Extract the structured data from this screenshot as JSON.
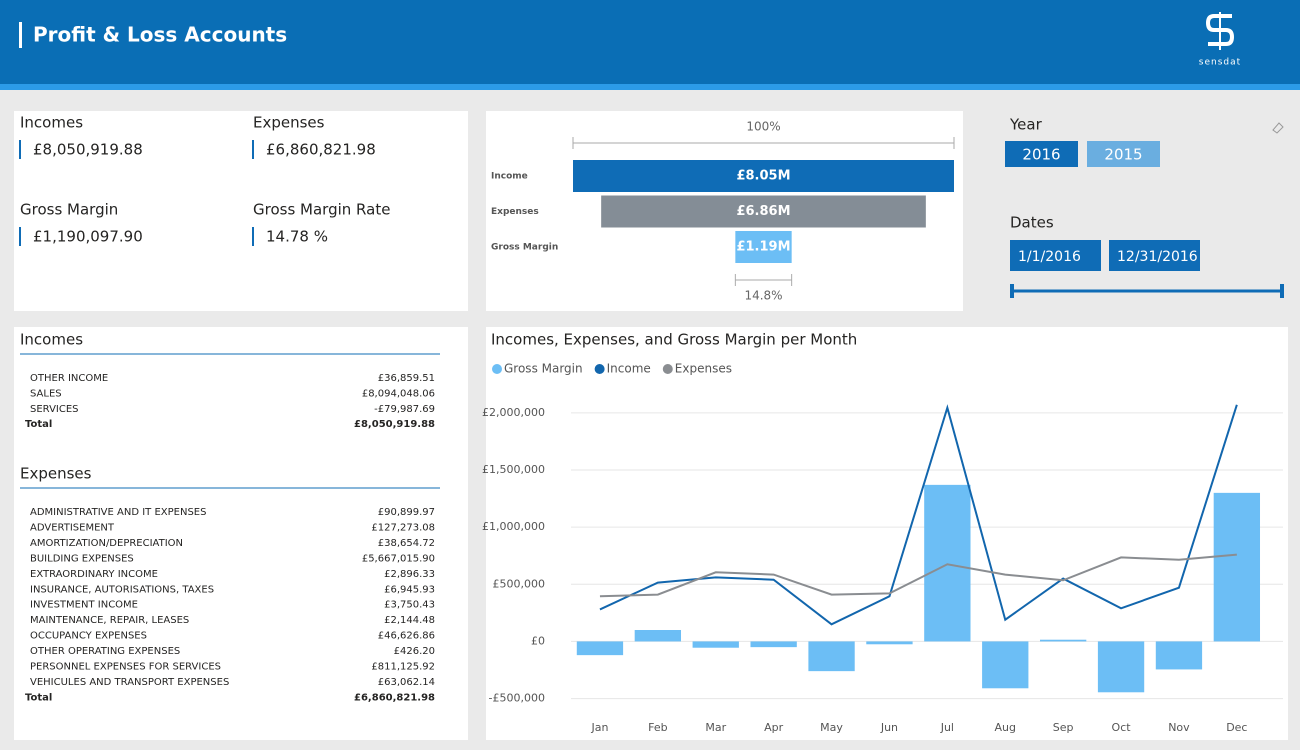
{
  "header": {
    "title": "Profit & Loss Accounts",
    "logo_text": "sensdat"
  },
  "kpis": [
    {
      "label": "Incomes",
      "value": "£8,050,919.88"
    },
    {
      "label": "Expenses",
      "value": "£6,860,821.98"
    },
    {
      "label": "Gross Margin",
      "value": "£1,190,097.90"
    },
    {
      "label": "Gross Margin Rate",
      "value": "14.78 %"
    }
  ],
  "slicers": {
    "year": {
      "label": "Year",
      "options": [
        {
          "label": "2016",
          "selected": true
        },
        {
          "label": "2015",
          "selected": false
        }
      ]
    },
    "dates": {
      "label": "Dates",
      "start": "1/1/2016",
      "end": "12/31/2016"
    }
  },
  "tables": [
    {
      "title": "Incomes",
      "rows": [
        [
          "OTHER INCOME",
          "£36,859.51"
        ],
        [
          "SALES",
          "£8,094,048.06"
        ],
        [
          "SERVICES",
          "-£79,987.69"
        ]
      ],
      "total": [
        "Total",
        "£8,050,919.88"
      ]
    },
    {
      "title": "Expenses",
      "rows": [
        [
          "ADMINISTRATIVE AND IT EXPENSES",
          "£90,899.97"
        ],
        [
          "ADVERTISEMENT",
          "£127,273.08"
        ],
        [
          "AMORTIZATION/DEPRECIATION",
          "£38,654.72"
        ],
        [
          "BUILDING EXPENSES",
          "£5,667,015.90"
        ],
        [
          "EXTRAORDINARY INCOME",
          "£2,896.33"
        ],
        [
          "INSURANCE, AUTORISATIONS, TAXES",
          "£6,945.93"
        ],
        [
          "INVESTMENT INCOME",
          "£3,750.43"
        ],
        [
          "MAINTENANCE, REPAIR, LEASES",
          "£2,144.48"
        ],
        [
          "OCCUPANCY EXPENSES",
          "£46,626.86"
        ],
        [
          "OTHER OPERATING EXPENSES",
          "£426.20"
        ],
        [
          "PERSONNEL EXPENSES FOR SERVICES",
          "£811,125.92"
        ],
        [
          "VEHICULES AND TRANSPORT EXPENSES",
          "£63,062.14"
        ]
      ],
      "total": [
        "Total",
        "£6,860,821.98"
      ]
    }
  ],
  "chart_data": [
    {
      "type": "funnel",
      "categories": [
        "Income",
        "Expenses",
        "Gross Margin"
      ],
      "values": [
        8050919.88,
        6860821.98,
        1190097.9
      ],
      "value_labels": [
        "£8.05M",
        "£6.86M",
        "£1.19M"
      ],
      "colors": [
        "#0f6cb6",
        "#848d96",
        "#6cbef5"
      ],
      "top_label": "100%",
      "bottom_label": "14.8%"
    },
    {
      "type": "combo",
      "title": "Incomes, Expenses, and Gross Margin per Month",
      "categories": [
        "Jan",
        "Feb",
        "Mar",
        "Apr",
        "May",
        "Jun",
        "Jul",
        "Aug",
        "Sep",
        "Oct",
        "Nov",
        "Dec"
      ],
      "series": [
        {
          "name": "Gross Margin",
          "type": "bar",
          "color": "#6cbef5",
          "values": [
            -120000,
            100000,
            -55000,
            -50000,
            -260000,
            -25000,
            1370000,
            -410000,
            15000,
            -445000,
            -245000,
            1300000
          ]
        },
        {
          "name": "Income",
          "type": "line",
          "color": "#1266ad",
          "values": [
            280000,
            515000,
            560000,
            540000,
            150000,
            395000,
            2045000,
            190000,
            550000,
            290000,
            470000,
            2070000
          ]
        },
        {
          "name": "Expenses",
          "type": "line",
          "color": "#8a8d91",
          "values": [
            395000,
            410000,
            605000,
            585000,
            410000,
            420000,
            675000,
            585000,
            535000,
            735000,
            715000,
            760000
          ]
        }
      ],
      "ylim": [
        -600000,
        2200000
      ],
      "yticks": [
        {
          "value": -500000,
          "label": "-£500,000"
        },
        {
          "value": 0,
          "label": "£0"
        },
        {
          "value": 500000,
          "label": "£500,000"
        },
        {
          "value": 1000000,
          "label": "£1,000,000"
        },
        {
          "value": 1500000,
          "label": "£1,500,000"
        },
        {
          "value": 2000000,
          "label": "£2,000,000"
        }
      ],
      "grid": true,
      "legend": "top-left"
    }
  ]
}
